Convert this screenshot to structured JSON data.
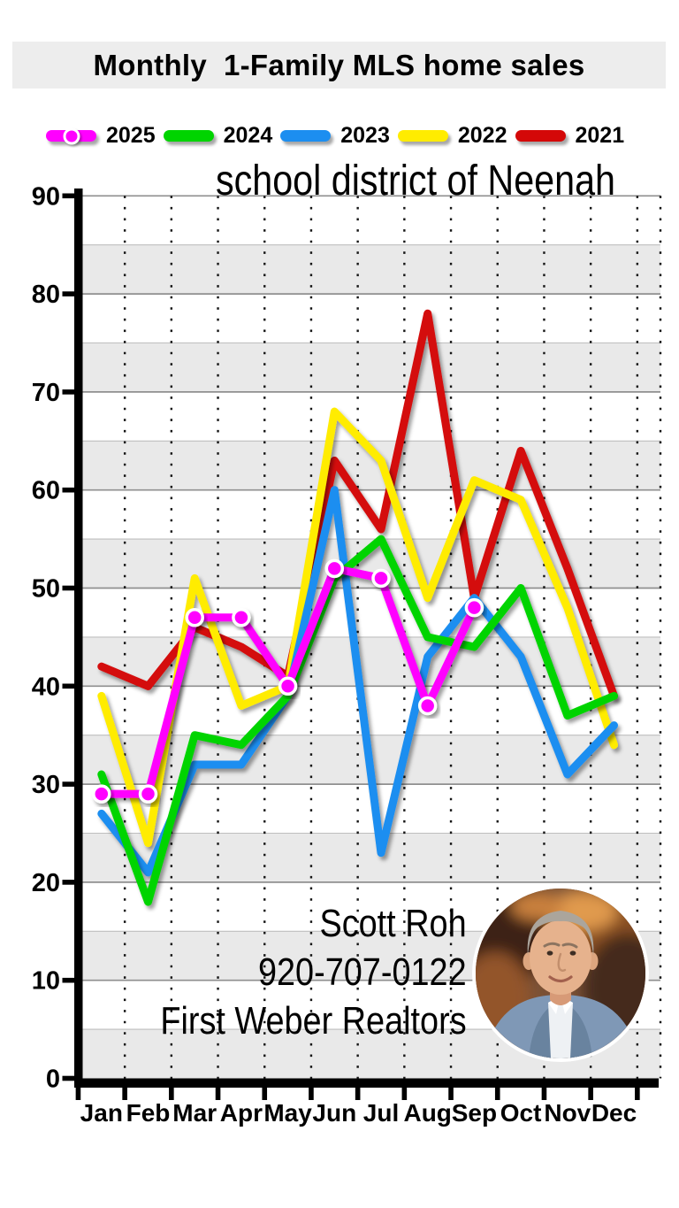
{
  "title": "Monthly  1-Family MLS home sales",
  "subtitle": "school district of Neenah",
  "contact": {
    "name": "Scott Roh",
    "phone": "920-707-0122",
    "company": "First Weber Realtors"
  },
  "chart_data": {
    "type": "line",
    "title": "Monthly 1-Family MLS home sales",
    "subtitle": "school district of Neenah",
    "categories": [
      "Jan",
      "Feb",
      "Mar",
      "Apr",
      "May",
      "Jun",
      "Jul",
      "Aug",
      "Sep",
      "Oct",
      "Nov",
      "Dec"
    ],
    "series": [
      {
        "name": "2025",
        "color": "#ff00ff",
        "marker": "circle",
        "values": [
          29,
          29,
          47,
          47,
          40,
          52,
          51,
          38,
          48,
          null,
          null,
          null
        ]
      },
      {
        "name": "2024",
        "color": "#00d400",
        "marker": null,
        "values": [
          31,
          18,
          35,
          34,
          39,
          51,
          55,
          45,
          44,
          50,
          37,
          39
        ]
      },
      {
        "name": "2023",
        "color": "#1c8ef0",
        "marker": null,
        "values": [
          27,
          21,
          32,
          32,
          39,
          60,
          23,
          43,
          49,
          43,
          31,
          36
        ]
      },
      {
        "name": "2022",
        "color": "#ffec00",
        "marker": null,
        "values": [
          39,
          24,
          51,
          38,
          40,
          68,
          63,
          49,
          61,
          59,
          48,
          34
        ]
      },
      {
        "name": "2021",
        "color": "#d40808",
        "marker": null,
        "values": [
          42,
          40,
          46,
          44,
          41,
          63,
          56,
          78,
          49,
          64,
          52,
          39
        ]
      }
    ],
    "ylim": [
      0,
      90
    ],
    "yticks": [
      0,
      10,
      20,
      30,
      40,
      50,
      60,
      70,
      80,
      90
    ],
    "band_step": 5,
    "grid": true,
    "legend_position": "top",
    "band_color": "#e9e9e9"
  }
}
